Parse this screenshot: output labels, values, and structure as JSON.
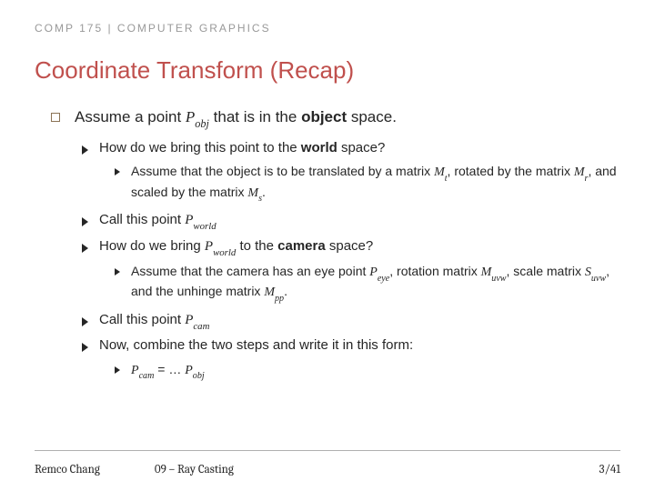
{
  "header": {
    "label": "COMP 175 | COMPUTER GRAPHICS"
  },
  "title": "Coordinate Transform (Recap)",
  "lines": {
    "l0a": "Assume a point ",
    "l0b": " that is in the ",
    "l0c": " space.",
    "p_obj_P": "P",
    "p_obj_sub": "obj",
    "object_word": "object",
    "l1a": "How do we bring this point to the ",
    "l1b": " space?",
    "world_word": "world",
    "l2a": "Assume that the object is to be translated by a matrix ",
    "l2b": ", rotated by the matrix ",
    "l2c": ", and scaled by the matrix ",
    "l2d": ".",
    "Mt_M": "M",
    "Mt_s": "t",
    "Mr_M": "M",
    "Mr_s": "r",
    "Ms_M": "M",
    "Ms_s": "s",
    "l3a": "Call this point ",
    "Pw_P": "P",
    "Pw_s": "world",
    "l4a": "How do we bring ",
    "l4b": " to the ",
    "l4c": " space?",
    "camera_word": "camera",
    "l5a": "Assume that the camera has an eye point ",
    "l5b": ", rotation matrix ",
    "l5c": ", scale matrix ",
    "l5d": ", and the unhinge matrix ",
    "l5e": ".",
    "Pe_P": "P",
    "Pe_s": "eye",
    "Muvw_M": "M",
    "Muvw_s": "uvw",
    "Suvw_S": "S",
    "Suvw_s": "uvw",
    "Mpp_M": "M",
    "Mpp_s": "pp",
    "l6a": "Call this point ",
    "Pc_P": "P",
    "Pc_s": "cam",
    "l7": "Now, combine the two steps and write it in this form:",
    "l8_Pc_P": "P",
    "l8_Pc_s": "cam",
    "l8_eq": " =  … ",
    "l8_Po_P": "P",
    "l8_Po_s": "obj"
  },
  "footer": {
    "author": "Remco Chang",
    "chapter": "09 – Ray Casting",
    "page": "3/41"
  }
}
